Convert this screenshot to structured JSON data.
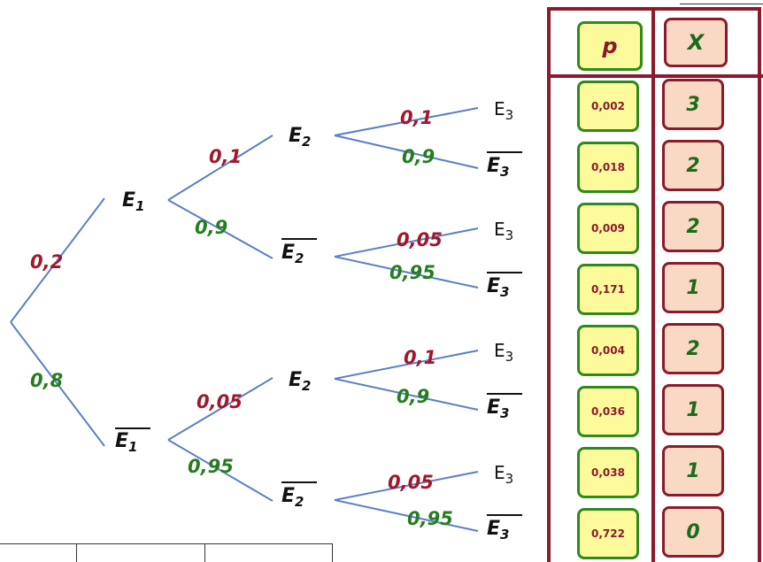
{
  "tree": {
    "root": {
      "branches": [
        {
          "prob": "0,2",
          "prob_color": "red",
          "node": "E1",
          "bar": false
        },
        {
          "prob": "0,8",
          "prob_color": "green",
          "node": "E1",
          "bar": true
        }
      ]
    },
    "level1": [
      {
        "node": "E1",
        "bar": false,
        "branches": [
          {
            "prob": "0,1",
            "prob_color": "red",
            "node": "E2",
            "bar": false
          },
          {
            "prob": "0,9",
            "prob_color": "green",
            "node": "E2",
            "bar": true
          }
        ]
      },
      {
        "node": "E1",
        "bar": true,
        "branches": [
          {
            "prob": "0,05",
            "prob_color": "red",
            "node": "E2",
            "bar": false
          },
          {
            "prob": "0,95",
            "prob_color": "green",
            "node": "E2",
            "bar": true
          }
        ]
      }
    ],
    "level2": [
      {
        "node": "E2",
        "bar": false,
        "branches": [
          {
            "prob": "0,1",
            "prob_color": "red",
            "leaf": "E3",
            "bar": false
          },
          {
            "prob": "0,9",
            "prob_color": "green",
            "leaf": "E3",
            "bar": true
          }
        ]
      },
      {
        "node": "E2",
        "bar": true,
        "branches": [
          {
            "prob": "0,05",
            "prob_color": "red",
            "leaf": "E3",
            "bar": false
          },
          {
            "prob": "0,95",
            "prob_color": "green",
            "leaf": "E3",
            "bar": true
          }
        ]
      },
      {
        "node": "E2",
        "bar": false,
        "branches": [
          {
            "prob": "0,1",
            "prob_color": "red",
            "leaf": "E3",
            "bar": false
          },
          {
            "prob": "0,9",
            "prob_color": "green",
            "leaf": "E3",
            "bar": true
          }
        ]
      },
      {
        "node": "E2",
        "bar": true,
        "branches": [
          {
            "prob": "0,05",
            "prob_color": "red",
            "leaf": "E3",
            "bar": false
          },
          {
            "prob": "0,95",
            "prob_color": "green",
            "leaf": "E3",
            "bar": true
          }
        ]
      }
    ]
  },
  "table": {
    "header_p": "p",
    "header_x": "X",
    "rows": [
      {
        "p": "0,002",
        "x": "3"
      },
      {
        "p": "0,018",
        "x": "2"
      },
      {
        "p": "0,009",
        "x": "2"
      },
      {
        "p": "0,171",
        "x": "1"
      },
      {
        "p": "0,004",
        "x": "2"
      },
      {
        "p": "0,036",
        "x": "1"
      },
      {
        "p": "0,038",
        "x": "1"
      },
      {
        "p": "0,722",
        "x": "0"
      }
    ]
  },
  "colors": {
    "branch_line": "#5b7fc7",
    "prob_red": "#a0182a",
    "prob_green": "#267d1f",
    "panel_border": "#8a1a2c",
    "cell_p_bg": "#fdfa9b",
    "cell_p_border": "#2e8a1a",
    "cell_x_bg": "#f9d9c4",
    "cell_x_border": "#8a1a2c"
  }
}
